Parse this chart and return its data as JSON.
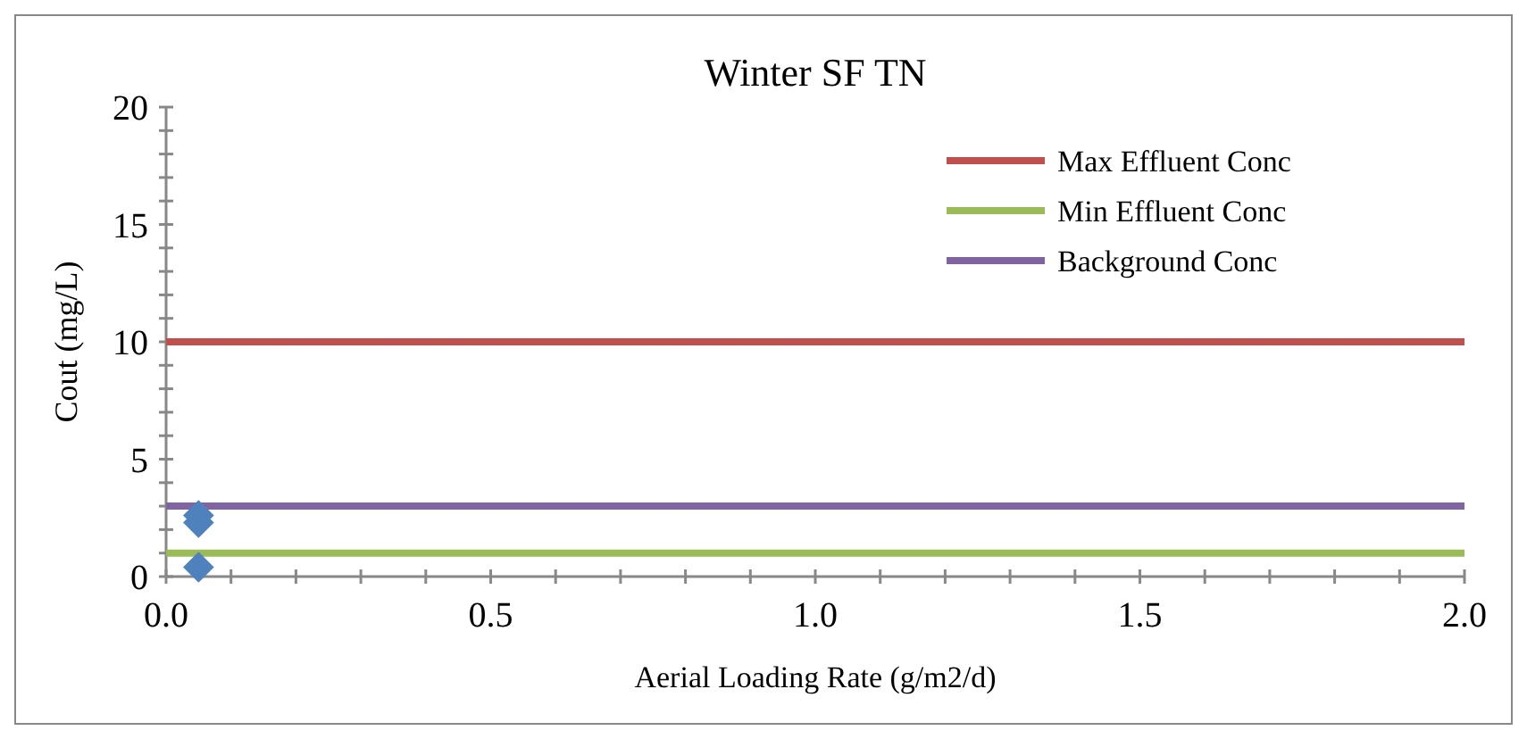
{
  "chart_data": {
    "type": "scatter",
    "title": "Winter SF TN",
    "xlabel": "Aerial Loading Rate (g/m2/d)",
    "ylabel": "Cout (mg/L)",
    "xlim": [
      0,
      2
    ],
    "ylim": [
      0,
      20
    ],
    "xticks": [
      {
        "value": 0,
        "label": "0.0"
      },
      {
        "value": 0.1,
        "label": null
      },
      {
        "value": 0.2,
        "label": null
      },
      {
        "value": 0.3,
        "label": null
      },
      {
        "value": 0.4,
        "label": null
      },
      {
        "value": 0.5,
        "label": "0.5"
      },
      {
        "value": 0.6,
        "label": null
      },
      {
        "value": 0.7,
        "label": null
      },
      {
        "value": 0.8,
        "label": null
      },
      {
        "value": 0.9,
        "label": null
      },
      {
        "value": 1,
        "label": "1.0"
      },
      {
        "value": 1.1,
        "label": null
      },
      {
        "value": 1.2,
        "label": null
      },
      {
        "value": 1.3,
        "label": null
      },
      {
        "value": 1.4,
        "label": null
      },
      {
        "value": 1.5,
        "label": "1.5"
      },
      {
        "value": 1.6,
        "label": null
      },
      {
        "value": 1.7,
        "label": null
      },
      {
        "value": 1.8,
        "label": null
      },
      {
        "value": 1.9,
        "label": null
      },
      {
        "value": 2,
        "label": "2.0"
      }
    ],
    "yticks": [
      0,
      {
        "value": 1,
        "label": null
      },
      {
        "value": 2,
        "label": null
      },
      {
        "value": 3,
        "label": null
      },
      {
        "value": 4,
        "label": null
      },
      5,
      {
        "value": 6,
        "label": null
      },
      {
        "value": 7,
        "label": null
      },
      {
        "value": 8,
        "label": null
      },
      {
        "value": 9,
        "label": null
      },
      10,
      {
        "value": 11,
        "label": null
      },
      {
        "value": 12,
        "label": null
      },
      {
        "value": 13,
        "label": null
      },
      {
        "value": 14,
        "label": null
      },
      15,
      {
        "value": 16,
        "label": null
      },
      {
        "value": 17,
        "label": null
      },
      {
        "value": 18,
        "label": null
      },
      {
        "value": 19,
        "label": null
      },
      20
    ],
    "grid": false,
    "legend": "top right",
    "series": [
      {
        "marker": "diamond",
        "color": "#4f81bd",
        "x": [
          0.05,
          0.05,
          0.05
        ],
        "values": [
          0.4,
          2.3,
          2.6
        ]
      },
      {
        "type": "line",
        "name": "Max Effluent Conc",
        "color": "#c0504d",
        "x": [
          0,
          2
        ],
        "values": [
          10,
          10
        ]
      },
      {
        "type": "line",
        "name": "Min Effluent Conc",
        "color": "#9bbb59",
        "x": [
          0,
          2
        ],
        "values": [
          1,
          1
        ]
      },
      {
        "type": "line",
        "name": "Background Conc",
        "color": "#8064a2",
        "x": [
          0,
          2
        ],
        "values": [
          3,
          3
        ]
      }
    ]
  }
}
